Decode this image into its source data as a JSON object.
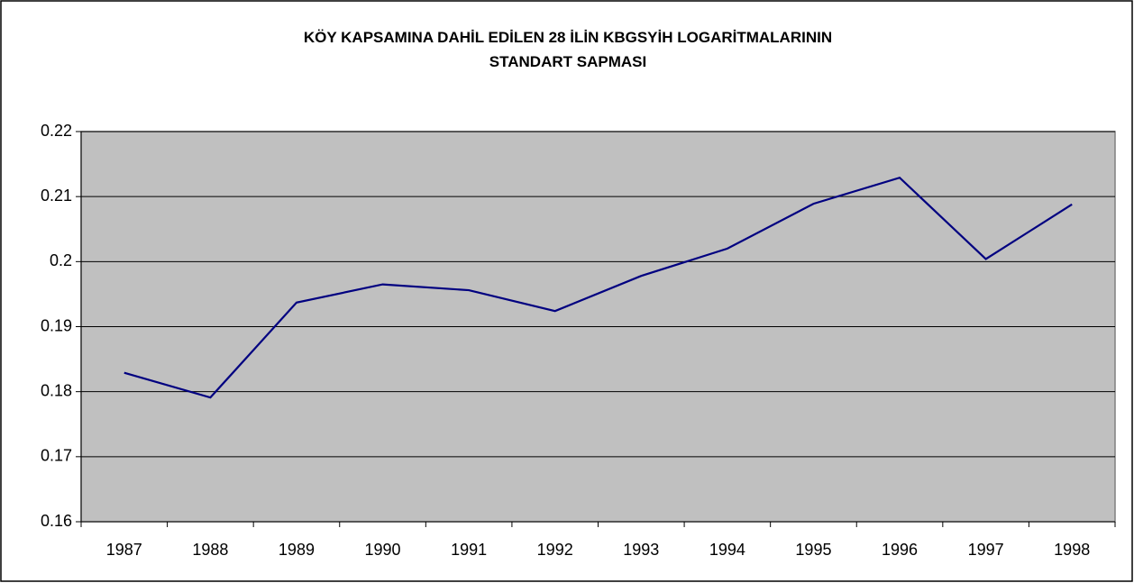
{
  "chart_data": {
    "type": "line",
    "title": "KÖY KAPSAMINA DAHİL EDİLEN 28 İLİN KBGSYİH LOGARİTMALARININ STANDART SAPMASI",
    "categories": [
      "1987",
      "1988",
      "1989",
      "1990",
      "1991",
      "1992",
      "1993",
      "1994",
      "1995",
      "1996",
      "1997",
      "1998"
    ],
    "values": [
      0.1829,
      0.1791,
      0.1937,
      0.1965,
      0.1956,
      0.1924,
      0.1978,
      0.202,
      0.2089,
      0.2129,
      0.2004,
      0.2088
    ],
    "color": "#000080",
    "ylim": [
      0.16,
      0.22
    ],
    "yticks": [
      0.16,
      0.17,
      0.18,
      0.19,
      0.2,
      0.21,
      0.22
    ],
    "grid": true
  }
}
